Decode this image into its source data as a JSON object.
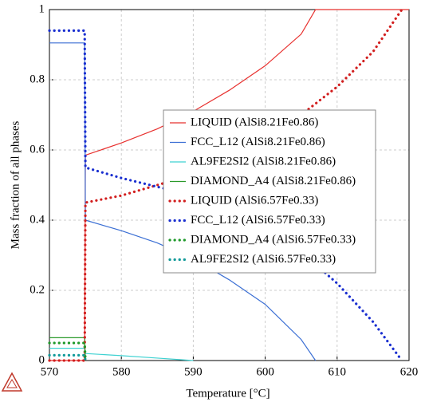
{
  "chart_data": {
    "type": "line",
    "xlabel": "Temperature [°C]",
    "ylabel": "Mass fraction of all phases",
    "xlim": [
      570,
      620
    ],
    "ylim": [
      0,
      1
    ],
    "xticks": [
      570,
      580,
      590,
      600,
      610,
      620
    ],
    "yticks": [
      0,
      0.2,
      0.4,
      0.6,
      0.8,
      1
    ],
    "grid": true,
    "legend": "right",
    "series": [
      {
        "name": "LIQUID (AlSi8.21Fe0.86)",
        "color": "#e8312f",
        "style": "solid",
        "x": [
          570,
          574.9,
          575,
          580,
          585,
          590,
          595,
          600,
          605,
          607,
          620
        ],
        "values": [
          0,
          0,
          0.585,
          0.62,
          0.66,
          0.71,
          0.77,
          0.84,
          0.93,
          1,
          1
        ]
      },
      {
        "name": "FCC_L12 (AlSi8.21Fe0.86)",
        "color": "#3b6fd4",
        "style": "solid",
        "x": [
          570,
          574.9,
          575,
          580,
          585,
          590,
          595,
          600,
          605,
          607
        ],
        "values": [
          0.905,
          0.905,
          0.4,
          0.37,
          0.335,
          0.29,
          0.23,
          0.16,
          0.06,
          0
        ]
      },
      {
        "name": "AL9FE2SI2 (AlSi8.21Fe0.86)",
        "color": "#3fd2d2",
        "style": "solid",
        "x": [
          570,
          574.9,
          575,
          580,
          585,
          590
        ],
        "values": [
          0.035,
          0.035,
          0.02,
          0.014,
          0.007,
          0
        ]
      },
      {
        "name": "DIAMOND_A4 (AlSi8.21Fe0.86)",
        "color": "#2a9a2a",
        "style": "solid",
        "x": [
          570,
          574.9,
          575
        ],
        "values": [
          0.065,
          0.065,
          0
        ]
      },
      {
        "name": "LIQUID (AlSi6.57Fe0.33)",
        "color": "#d21e1e",
        "style": "dotted",
        "x": [
          570,
          574.9,
          575,
          580,
          585,
          590,
          595,
          600,
          605,
          610,
          615,
          619
        ],
        "values": [
          0,
          0,
          0.45,
          0.47,
          0.5,
          0.53,
          0.575,
          0.63,
          0.7,
          0.78,
          0.88,
          1
        ]
      },
      {
        "name": "FCC_L12 (AlSi6.57Fe0.33)",
        "color": "#1a2fd0",
        "style": "dotted",
        "x": [
          570,
          574.9,
          575,
          580,
          585,
          590,
          595,
          600,
          605,
          610,
          615,
          619
        ],
        "values": [
          0.94,
          0.94,
          0.55,
          0.52,
          0.495,
          0.47,
          0.43,
          0.38,
          0.31,
          0.22,
          0.11,
          0
        ]
      },
      {
        "name": "DIAMOND_A4 (AlSi6.57Fe0.33)",
        "color": "#1f9a2a",
        "style": "dotted",
        "x": [
          570,
          574.9,
          575
        ],
        "values": [
          0.05,
          0.05,
          0
        ]
      },
      {
        "name": "AL9FE2SI2 (AlSi6.57Fe0.33)",
        "color": "#129a9a",
        "style": "dotted",
        "x": [
          570,
          574.9,
          575
        ],
        "values": [
          0.015,
          0.015,
          0
        ]
      }
    ]
  }
}
